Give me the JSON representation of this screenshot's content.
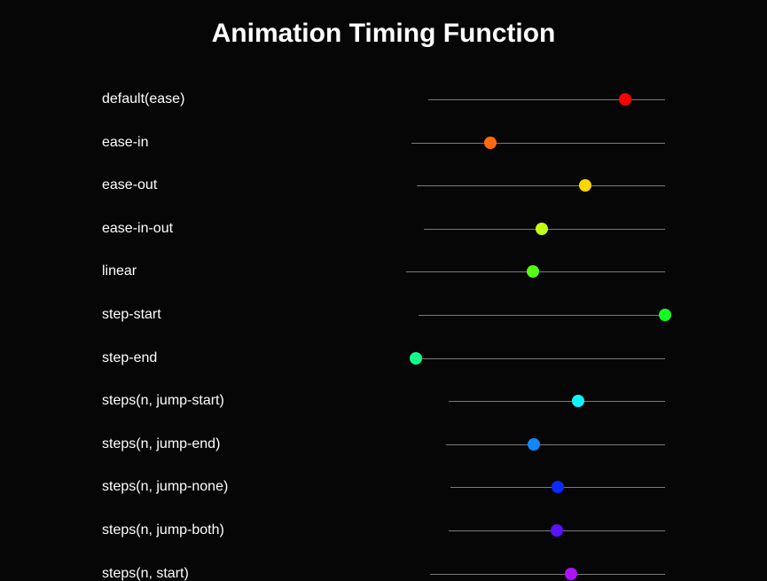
{
  "title": "Animation Timing Function",
  "rows": [
    {
      "label": "default(ease)",
      "color": "#ff0000",
      "progress": 0.83,
      "track_start": 483
    },
    {
      "label": "ease-in",
      "color": "#ff6a0e",
      "progress": 0.31,
      "track_start": 464
    },
    {
      "label": "ease-out",
      "color": "#ffd600",
      "progress": 0.68,
      "track_start": 470
    },
    {
      "label": "ease-in-out",
      "color": "#c3ff12",
      "progress": 0.49,
      "track_start": 478
    },
    {
      "label": "linear",
      "color": "#52ff12",
      "progress": 0.49,
      "track_start": 458
    },
    {
      "label": "step-start",
      "color": "#12ff22",
      "progress": 1.0,
      "track_start": 472
    },
    {
      "label": "step-end",
      "color": "#12ff8e",
      "progress": 0.0,
      "track_start": 469
    },
    {
      "label": "steps(n, jump-start)",
      "color": "#12f2ff",
      "progress": 0.6,
      "track_start": 506
    },
    {
      "label": "steps(n, jump-end)",
      "color": "#1288ff",
      "progress": 0.4,
      "track_start": 503
    },
    {
      "label": "steps(n, jump-none)",
      "color": "#0a2aff",
      "progress": 0.5,
      "track_start": 508
    },
    {
      "label": "steps(n, jump-both)",
      "color": "#5a12ff",
      "progress": 0.5,
      "track_start": 506
    },
    {
      "label": "steps(n, start)",
      "color": "#b012ff",
      "progress": 0.6,
      "track_start": 485
    }
  ]
}
